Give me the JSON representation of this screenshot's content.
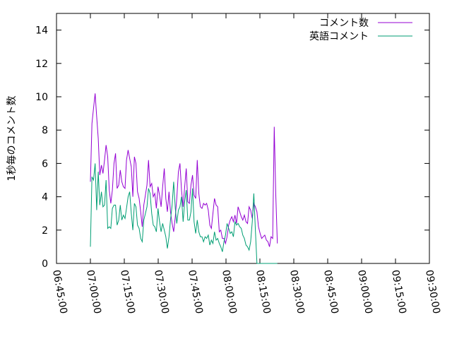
{
  "chart_data": {
    "type": "line",
    "title": "",
    "xlabel": "",
    "ylabel": "1秒毎のコメント数",
    "xlim": [
      "06:45:00",
      "09:30:00"
    ],
    "ylim": [
      0,
      15
    ],
    "grid": false,
    "legend_position": "top-right",
    "x_ticks": [
      "06:45:00",
      "07:00:00",
      "07:15:00",
      "07:30:00",
      "07:45:00",
      "08:00:00",
      "08:15:00",
      "08:30:00",
      "08:45:00",
      "09:00:00",
      "09:15:00",
      "09:30:00"
    ],
    "y_ticks": [
      "0",
      "2",
      "4",
      "6",
      "8",
      "10",
      "12",
      "14"
    ],
    "series": [
      {
        "name": "コメント数",
        "color": "#9400d3",
        "points": [
          [
            "07:00:00",
            4.9
          ],
          [
            "07:00:42",
            8.4
          ],
          [
            "07:01:23",
            9.3
          ],
          [
            "07:02:05",
            10.2
          ],
          [
            "07:02:47",
            8.8
          ],
          [
            "07:03:29",
            7.5
          ],
          [
            "07:04:10",
            5.3
          ],
          [
            "07:04:52",
            5.9
          ],
          [
            "07:05:34",
            5.4
          ],
          [
            "07:06:15",
            6.2
          ],
          [
            "07:06:57",
            7.1
          ],
          [
            "07:07:39",
            6.4
          ],
          [
            "07:08:21",
            4.4
          ],
          [
            "07:09:02",
            3.6
          ],
          [
            "07:09:44",
            4.4
          ],
          [
            "07:10:26",
            6.0
          ],
          [
            "07:11:07",
            6.6
          ],
          [
            "07:11:49",
            4.5
          ],
          [
            "07:12:31",
            4.7
          ],
          [
            "07:13:13",
            5.6
          ],
          [
            "07:13:54",
            4.9
          ],
          [
            "07:14:36",
            4.6
          ],
          [
            "07:15:18",
            4.5
          ],
          [
            "07:15:59",
            6.2
          ],
          [
            "07:16:41",
            6.8
          ],
          [
            "07:17:23",
            6.3
          ],
          [
            "07:18:05",
            5.8
          ],
          [
            "07:18:46",
            4.0
          ],
          [
            "07:19:28",
            6.4
          ],
          [
            "07:20:10",
            6.0
          ],
          [
            "07:20:51",
            4.3
          ],
          [
            "07:21:33",
            3.9
          ],
          [
            "07:22:15",
            3.1
          ],
          [
            "07:22:57",
            2.2
          ],
          [
            "07:23:38",
            3.5
          ],
          [
            "07:24:20",
            4.1
          ],
          [
            "07:25:02",
            4.7
          ],
          [
            "07:25:43",
            6.2
          ],
          [
            "07:26:25",
            4.6
          ],
          [
            "07:27:07",
            4.8
          ],
          [
            "07:27:49",
            4.0
          ],
          [
            "07:28:30",
            4.2
          ],
          [
            "07:29:12",
            3.3
          ],
          [
            "07:29:54",
            4.6
          ],
          [
            "07:30:35",
            4.1
          ],
          [
            "07:31:17",
            3.4
          ],
          [
            "07:31:59",
            4.6
          ],
          [
            "07:32:41",
            5.7
          ],
          [
            "07:33:22",
            3.9
          ],
          [
            "07:34:04",
            3.1
          ],
          [
            "07:34:46",
            4.3
          ],
          [
            "07:35:27",
            3.1
          ],
          [
            "07:36:09",
            2.4
          ],
          [
            "07:36:51",
            1.9
          ],
          [
            "07:37:33",
            2.8
          ],
          [
            "07:38:14",
            3.9
          ],
          [
            "07:38:56",
            5.5
          ],
          [
            "07:39:38",
            6.0
          ],
          [
            "07:40:19",
            4.4
          ],
          [
            "07:41:01",
            3.4
          ],
          [
            "07:41:43",
            4.6
          ],
          [
            "07:42:25",
            5.7
          ],
          [
            "07:43:06",
            3.7
          ],
          [
            "07:43:48",
            3.6
          ],
          [
            "07:44:30",
            4.7
          ],
          [
            "07:45:11",
            5.3
          ],
          [
            "07:45:53",
            4.1
          ],
          [
            "07:46:35",
            3.9
          ],
          [
            "07:47:17",
            6.2
          ],
          [
            "07:47:58",
            4.2
          ],
          [
            "07:48:40",
            3.4
          ],
          [
            "07:49:22",
            3.3
          ],
          [
            "07:50:03",
            3.6
          ],
          [
            "07:50:45",
            3.5
          ],
          [
            "07:51:27",
            3.6
          ],
          [
            "07:52:09",
            3.2
          ],
          [
            "07:52:50",
            2.3
          ],
          [
            "07:53:32",
            2.1
          ],
          [
            "07:54:14",
            3.0
          ],
          [
            "07:54:55",
            3.9
          ],
          [
            "07:55:37",
            3.5
          ],
          [
            "07:56:19",
            3.4
          ],
          [
            "07:57:01",
            1.9
          ],
          [
            "07:57:42",
            2.0
          ],
          [
            "07:58:24",
            1.5
          ],
          [
            "07:59:06",
            1.5
          ],
          [
            "07:59:47",
            1.2
          ],
          [
            "08:00:29",
            1.6
          ],
          [
            "08:01:11",
            2.3
          ],
          [
            "08:01:53",
            2.6
          ],
          [
            "08:02:34",
            2.8
          ],
          [
            "08:03:16",
            2.5
          ],
          [
            "08:03:58",
            2.9
          ],
          [
            "08:04:39",
            2.4
          ],
          [
            "08:05:21",
            3.4
          ],
          [
            "08:06:03",
            3.1
          ],
          [
            "08:06:45",
            2.8
          ],
          [
            "08:07:26",
            2.6
          ],
          [
            "08:08:08",
            2.9
          ],
          [
            "08:08:50",
            2.5
          ],
          [
            "08:09:31",
            2.4
          ],
          [
            "08:10:13",
            3.4
          ],
          [
            "08:10:55",
            3.2
          ],
          [
            "08:11:37",
            2.7
          ],
          [
            "08:12:18",
            3.6
          ],
          [
            "08:13:00",
            3.4
          ],
          [
            "08:13:42",
            3.1
          ],
          [
            "08:14:23",
            2.2
          ],
          [
            "08:15:05",
            1.8
          ],
          [
            "08:15:47",
            1.5
          ],
          [
            "08:16:29",
            1.6
          ],
          [
            "08:17:10",
            1.7
          ],
          [
            "08:17:52",
            1.4
          ],
          [
            "08:18:34",
            1.3
          ],
          [
            "08:19:15",
            1.0
          ],
          [
            "08:19:57",
            1.6
          ],
          [
            "08:20:39",
            1.5
          ],
          [
            "08:21:21",
            8.2
          ],
          [
            "08:22:02",
            4.1
          ],
          [
            "08:22:44",
            1.2
          ]
        ]
      },
      {
        "name": "英語コメント",
        "color": "#009e73",
        "points": [
          [
            "07:00:00",
            1.0
          ],
          [
            "07:00:42",
            5.2
          ],
          [
            "07:01:23",
            5.0
          ],
          [
            "07:02:05",
            6.0
          ],
          [
            "07:02:47",
            3.2
          ],
          [
            "07:03:29",
            5.5
          ],
          [
            "07:04:10",
            3.5
          ],
          [
            "07:04:52",
            4.3
          ],
          [
            "07:05:34",
            3.4
          ],
          [
            "07:06:15",
            3.5
          ],
          [
            "07:06:57",
            5.0
          ],
          [
            "07:07:39",
            2.1
          ],
          [
            "07:08:21",
            2.2
          ],
          [
            "07:09:02",
            2.1
          ],
          [
            "07:09:44",
            3.3
          ],
          [
            "07:10:26",
            3.5
          ],
          [
            "07:11:07",
            3.5
          ],
          [
            "07:11:49",
            2.3
          ],
          [
            "07:12:31",
            2.6
          ],
          [
            "07:13:13",
            3.5
          ],
          [
            "07:13:54",
            2.6
          ],
          [
            "07:14:36",
            2.9
          ],
          [
            "07:15:18",
            2.7
          ],
          [
            "07:15:59",
            3.3
          ],
          [
            "07:16:41",
            4.0
          ],
          [
            "07:17:23",
            4.3
          ],
          [
            "07:18:05",
            3.0
          ],
          [
            "07:18:46",
            2.0
          ],
          [
            "07:19:28",
            3.6
          ],
          [
            "07:20:10",
            3.4
          ],
          [
            "07:20:51",
            2.3
          ],
          [
            "07:21:33",
            2.1
          ],
          [
            "07:22:15",
            1.5
          ],
          [
            "07:22:57",
            1.3
          ],
          [
            "07:23:38",
            2.6
          ],
          [
            "07:24:20",
            3.0
          ],
          [
            "07:25:02",
            3.4
          ],
          [
            "07:25:43",
            4.5
          ],
          [
            "07:26:25",
            4.2
          ],
          [
            "07:27:07",
            3.0
          ],
          [
            "07:27:49",
            2.3
          ],
          [
            "07:28:30",
            2.2
          ],
          [
            "07:29:12",
            1.9
          ],
          [
            "07:29:54",
            3.3
          ],
          [
            "07:30:35",
            2.5
          ],
          [
            "07:31:17",
            1.9
          ],
          [
            "07:31:59",
            2.4
          ],
          [
            "07:32:41",
            2.0
          ],
          [
            "07:33:22",
            1.6
          ],
          [
            "07:34:04",
            0.9
          ],
          [
            "07:34:46",
            1.6
          ],
          [
            "07:35:27",
            2.6
          ],
          [
            "07:36:09",
            3.5
          ],
          [
            "07:36:51",
            4.9
          ],
          [
            "07:37:33",
            3.3
          ],
          [
            "07:38:14",
            2.4
          ],
          [
            "07:38:56",
            3.2
          ],
          [
            "07:39:38",
            3.4
          ],
          [
            "07:40:19",
            4.0
          ],
          [
            "07:41:01",
            2.5
          ],
          [
            "07:41:43",
            3.7
          ],
          [
            "07:42:25",
            4.4
          ],
          [
            "07:43:06",
            2.6
          ],
          [
            "07:43:48",
            2.6
          ],
          [
            "07:44:30",
            3.1
          ],
          [
            "07:45:11",
            4.5
          ],
          [
            "07:45:53",
            2.5
          ],
          [
            "07:46:35",
            1.8
          ],
          [
            "07:47:17",
            2.6
          ],
          [
            "07:47:58",
            1.9
          ],
          [
            "07:48:40",
            1.6
          ],
          [
            "07:49:22",
            1.6
          ],
          [
            "07:50:03",
            1.3
          ],
          [
            "07:50:45",
            1.6
          ],
          [
            "07:51:27",
            1.5
          ],
          [
            "07:52:09",
            1.7
          ],
          [
            "07:52:50",
            1.1
          ],
          [
            "07:53:32",
            1.4
          ],
          [
            "07:54:14",
            1.2
          ],
          [
            "07:54:55",
            1.9
          ],
          [
            "07:55:37",
            1.4
          ],
          [
            "07:56:19",
            1.5
          ],
          [
            "07:57:01",
            1.2
          ],
          [
            "07:57:42",
            1.0
          ],
          [
            "07:58:24",
            0.7
          ],
          [
            "07:59:06",
            1.3
          ],
          [
            "07:59:47",
            1.7
          ],
          [
            "08:00:29",
            2.4
          ],
          [
            "08:01:11",
            2.1
          ],
          [
            "08:01:53",
            1.8
          ],
          [
            "08:02:34",
            1.9
          ],
          [
            "08:03:16",
            1.6
          ],
          [
            "08:03:58",
            2.5
          ],
          [
            "08:04:39",
            2.3
          ],
          [
            "08:05:21",
            2.4
          ],
          [
            "08:06:03",
            2.2
          ],
          [
            "08:06:45",
            2.1
          ],
          [
            "08:07:26",
            1.7
          ],
          [
            "08:08:08",
            1.5
          ],
          [
            "08:08:50",
            1.1
          ],
          [
            "08:09:31",
            1.0
          ],
          [
            "08:10:13",
            0.8
          ],
          [
            "08:10:55",
            1.3
          ],
          [
            "08:11:37",
            2.5
          ],
          [
            "08:12:18",
            4.2
          ],
          [
            "08:13:00",
            2.0
          ],
          [
            "08:13:42",
            0.0
          ],
          [
            "08:14:23",
            0.0
          ],
          [
            "08:15:05",
            0.0
          ],
          [
            "08:15:47",
            0.0
          ],
          [
            "08:16:29",
            0.0
          ],
          [
            "08:17:10",
            0.0
          ],
          [
            "08:17:52",
            0.0
          ],
          [
            "08:18:34",
            0.0
          ],
          [
            "08:19:15",
            0.0
          ],
          [
            "08:19:57",
            0.0
          ],
          [
            "08:20:39",
            0.0
          ],
          [
            "08:21:21",
            0.0
          ],
          [
            "08:22:02",
            0.0
          ],
          [
            "08:22:44",
            0.0
          ]
        ]
      }
    ]
  }
}
